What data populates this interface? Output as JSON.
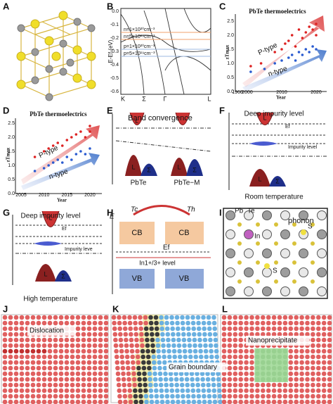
{
  "panels": {
    "A": {
      "label": "A"
    },
    "B": {
      "label": "B",
      "ylabel": "E-Ef (eV)",
      "yticks": [
        "0.0",
        "-0.1",
        "-0.2",
        "-0.3",
        "-0.4",
        "-0.5",
        "-0.6"
      ],
      "kpoints": [
        "K",
        "Σ",
        "Γ",
        "L"
      ],
      "legend": [
        "n=1×10²⁰cm⁻³",
        "n=5×10¹⁹cm⁻³",
        "p=1×10²⁰cm⁻³",
        "p=5×10¹⁹cm⁻³"
      ]
    },
    "C": {
      "label": "C",
      "title": "PbTe thermoelectrics",
      "xlabel": "Year",
      "ylabel": "zTmax",
      "xticks": [
        1960,
        2000,
        2010,
        2020
      ],
      "yticks": [
        "0.0",
        "0.5",
        "1.0",
        "1.5",
        "2.0",
        "2.5"
      ],
      "p_label": "P-type",
      "n_label": "n-type",
      "p_x": [
        2001,
        2004,
        2008,
        2010,
        2011,
        2012,
        2013,
        2014,
        2015,
        2016,
        2017,
        2018,
        2019,
        2020,
        2020
      ],
      "p_y": [
        0.9,
        1.0,
        1.4,
        1.5,
        1.7,
        1.8,
        2.0,
        1.6,
        2.2,
        1.9,
        2.1,
        2.3,
        2.2,
        2.4,
        2.0
      ],
      "n_x": [
        2001,
        2005,
        2008,
        2010,
        2012,
        2013,
        2014,
        2015,
        2016,
        2017,
        2018,
        2019,
        2020
      ],
      "n_y": [
        0.7,
        0.8,
        1.0,
        1.1,
        1.2,
        1.3,
        1.1,
        1.4,
        1.3,
        1.5,
        1.4,
        1.6,
        1.5
      ]
    },
    "D": {
      "label": "D",
      "title": "PbTe thermoelectrics",
      "xlabel": "Year",
      "ylabel": "zTmax",
      "xticks": [
        2005,
        2010,
        2015,
        2020
      ],
      "yticks": [
        "0.0",
        "0.5",
        "1.0",
        "1.5",
        "2.0",
        "2.5"
      ],
      "p_label": "P-type",
      "n_label": "n-type",
      "p_x": [
        2008,
        2010,
        2011,
        2012,
        2013,
        2014,
        2015,
        2016,
        2017,
        2018,
        2019,
        2020,
        2020
      ],
      "p_y": [
        1.3,
        1.5,
        1.6,
        1.7,
        1.8,
        1.7,
        1.9,
        2.0,
        2.1,
        2.2,
        2.0,
        2.4,
        2.2
      ],
      "n_x": [
        2008,
        2010,
        2011,
        2012,
        2013,
        2014,
        2015,
        2016,
        2017,
        2018,
        2019,
        2020
      ],
      "n_y": [
        0.8,
        0.9,
        1.0,
        1.1,
        1.2,
        1.1,
        1.3,
        1.2,
        1.4,
        1.5,
        1.4,
        1.6
      ]
    },
    "E": {
      "label": "E",
      "title": "Band convergence",
      "band_l": "L",
      "band_s": "Σ",
      "left": "PbTe",
      "right": "PbTe−M"
    },
    "F": {
      "label": "F",
      "title": "Deep impurity level",
      "ef": "Ef",
      "impurity": "Impurity level",
      "band_l": "L",
      "band_s": "Σ",
      "caption": "Room temperature"
    },
    "G": {
      "label": "G",
      "title": "Deep impurity level",
      "ef": "Ef",
      "impurity": "Impurity leve",
      "band_l": "L",
      "band_s": "Σ",
      "caption": "High temperature"
    },
    "H": {
      "label": "H",
      "axis": "E",
      "tc": "Tc",
      "th": "Th",
      "cb": "CB",
      "ef": "Ef",
      "level": "In1+/3+ level",
      "vb": "VB"
    },
    "I": {
      "label": "I",
      "pb": "Pb",
      "te": "Te",
      "in": "In",
      "phonon": "phonon",
      "s": "S"
    },
    "J": {
      "label": "J",
      "note": "Dislocation"
    },
    "K": {
      "label": "K",
      "note": "Grain boundary"
    },
    "L": {
      "label": "L",
      "note": "Nanoprecipitate"
    }
  }
}
